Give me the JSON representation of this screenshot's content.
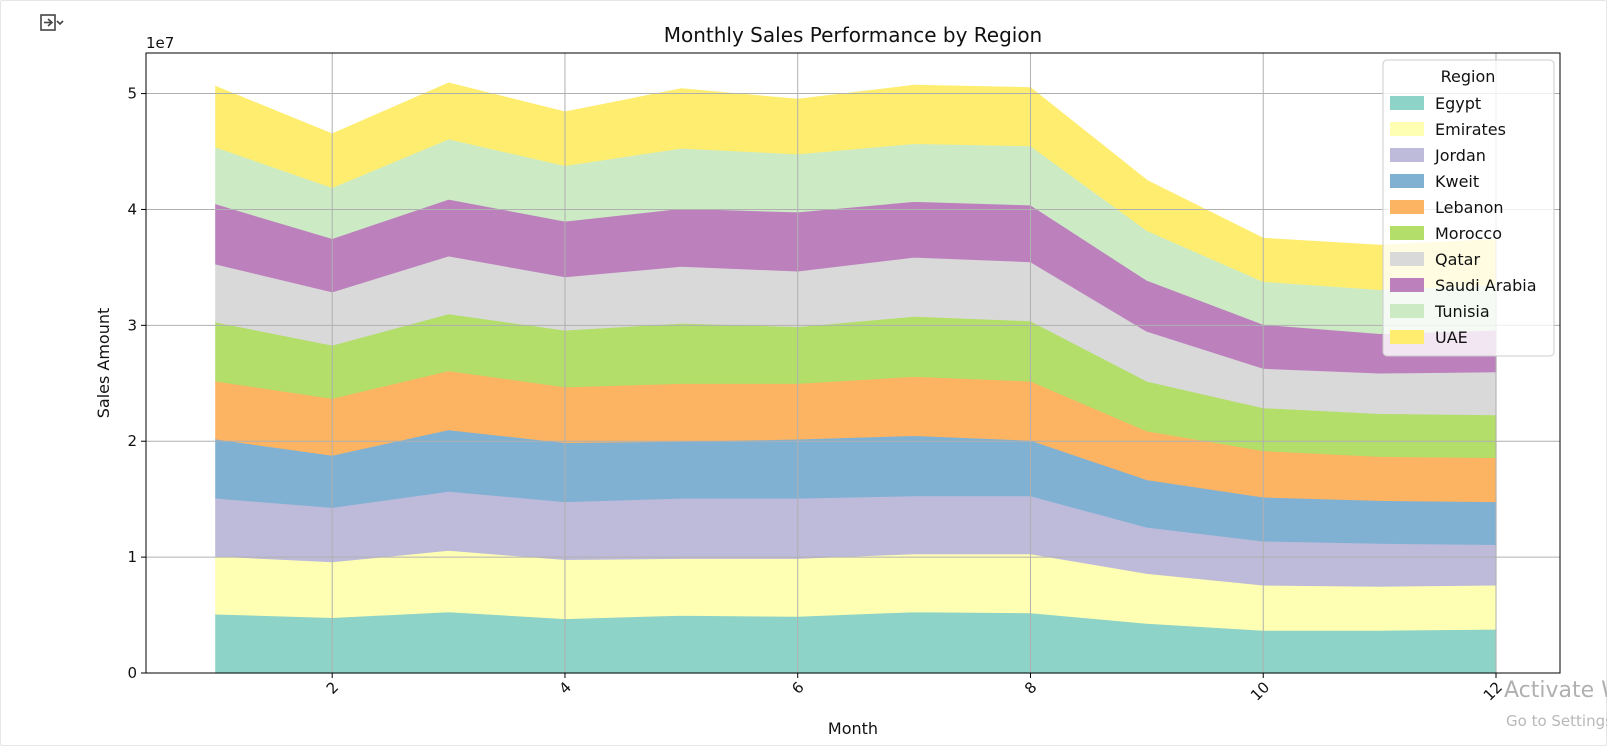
{
  "toolbar": {
    "icon": "collapse-output-icon"
  },
  "watermark": {
    "line1": "Activate W",
    "line2": "Go to Settings"
  },
  "chart_data": {
    "type": "area",
    "stacked": true,
    "title": "Monthly Sales Performance by Region",
    "xlabel": "Month",
    "ylabel": "Sales Amount",
    "y_scale_label": "1e7",
    "x": [
      1,
      2,
      3,
      4,
      5,
      6,
      7,
      8,
      9,
      10,
      11,
      12
    ],
    "xlim": [
      0.4,
      12.55
    ],
    "ylim": [
      0,
      5.35
    ],
    "x_ticks": [
      2,
      4,
      6,
      8,
      10,
      12
    ],
    "y_ticks": [
      0,
      1,
      2,
      3,
      4,
      5
    ],
    "grid": true,
    "legend_title": "Region",
    "legend_position": "top-right",
    "series": [
      {
        "name": "Egypt",
        "color": "#8dd3c7",
        "values": [
          0.51,
          0.48,
          0.53,
          0.47,
          0.5,
          0.49,
          0.53,
          0.52,
          0.43,
          0.37,
          0.37,
          0.38
        ]
      },
      {
        "name": "Emirates",
        "color": "#ffffb3",
        "values": [
          0.5,
          0.48,
          0.53,
          0.51,
          0.49,
          0.5,
          0.5,
          0.51,
          0.43,
          0.39,
          0.38,
          0.38
        ]
      },
      {
        "name": "Jordan",
        "color": "#bebada",
        "values": [
          0.5,
          0.47,
          0.51,
          0.5,
          0.52,
          0.52,
          0.5,
          0.5,
          0.4,
          0.38,
          0.37,
          0.35
        ]
      },
      {
        "name": "Kweit",
        "color": "#80b1d3",
        "values": [
          0.51,
          0.45,
          0.53,
          0.51,
          0.49,
          0.51,
          0.52,
          0.48,
          0.41,
          0.38,
          0.37,
          0.37
        ]
      },
      {
        "name": "Lebanon",
        "color": "#fdb462",
        "values": [
          0.5,
          0.49,
          0.51,
          0.48,
          0.5,
          0.48,
          0.51,
          0.51,
          0.42,
          0.4,
          0.38,
          0.38
        ]
      },
      {
        "name": "Morocco",
        "color": "#b3de69",
        "values": [
          0.51,
          0.46,
          0.49,
          0.49,
          0.52,
          0.49,
          0.52,
          0.52,
          0.43,
          0.37,
          0.37,
          0.37
        ]
      },
      {
        "name": "Qatar",
        "color": "#d9d9d9",
        "values": [
          0.5,
          0.46,
          0.5,
          0.46,
          0.49,
          0.48,
          0.51,
          0.51,
          0.43,
          0.34,
          0.35,
          0.37
        ]
      },
      {
        "name": "Saudi Arabia",
        "color": "#bc80bd",
        "values": [
          0.52,
          0.46,
          0.49,
          0.48,
          0.5,
          0.51,
          0.48,
          0.49,
          0.44,
          0.38,
          0.34,
          0.36
        ]
      },
      {
        "name": "Tunisia",
        "color": "#ccebc5",
        "values": [
          0.49,
          0.44,
          0.52,
          0.48,
          0.52,
          0.5,
          0.5,
          0.51,
          0.43,
          0.37,
          0.38,
          0.39
        ]
      },
      {
        "name": "UAE",
        "color": "#ffed6f",
        "values": [
          0.52,
          0.46,
          0.48,
          0.46,
          0.51,
          0.47,
          0.5,
          0.5,
          0.43,
          0.37,
          0.38,
          0.39
        ]
      }
    ]
  }
}
